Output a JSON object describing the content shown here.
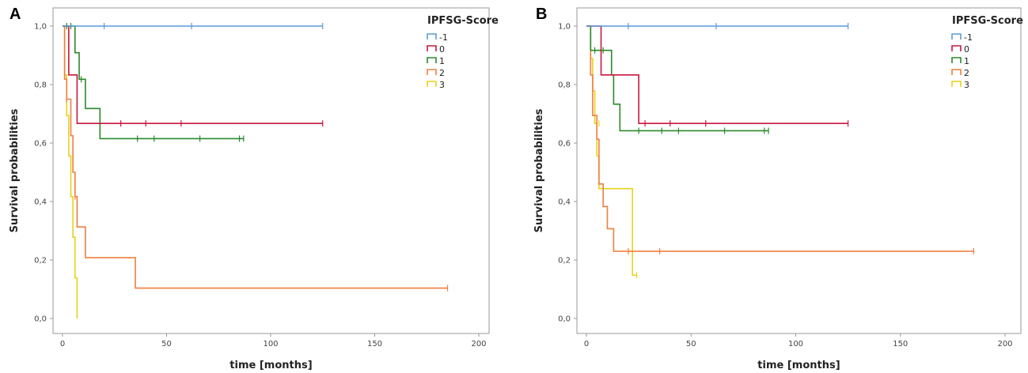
{
  "panels": [
    {
      "letter": "A",
      "legend_title": "IPFSG-Score",
      "chart_data": {
        "type": "line",
        "xlabel": "time [months]",
        "ylabel": "Survival probabilities",
        "xlim": [
          0,
          200
        ],
        "ylim": [
          0,
          1
        ],
        "x_ticks": [
          0,
          50,
          100,
          150,
          200
        ],
        "y_ticks": [
          "0,0",
          "0,2",
          "0,4",
          "0,6",
          "0,8",
          "1,0"
        ],
        "series": [
          {
            "name": "-1",
            "color": "#5b9bd5",
            "steps": [
              [
                0,
                1.0
              ],
              [
                125,
                1.0
              ]
            ],
            "censor": [
              [
                20,
                1.0
              ],
              [
                62,
                1.0
              ],
              [
                125,
                1.0
              ]
            ]
          },
          {
            "name": "0",
            "color": "#c8173f",
            "steps": [
              [
                0,
                1.0
              ],
              [
                3,
                0.833
              ],
              [
                7,
                0.667
              ],
              [
                125,
                0.667
              ]
            ],
            "censor": [
              [
                28,
                0.667
              ],
              [
                40,
                0.667
              ],
              [
                57,
                0.667
              ],
              [
                125,
                0.667
              ]
            ]
          },
          {
            "name": "1",
            "color": "#2a8a2a",
            "steps": [
              [
                0,
                1.0
              ],
              [
                6,
                0.909
              ],
              [
                8,
                0.818
              ],
              [
                11,
                0.718
              ],
              [
                18,
                0.615
              ],
              [
                87,
                0.615
              ]
            ],
            "censor": [
              [
                2,
                1.0
              ],
              [
                4,
                1.0
              ],
              [
                9,
                0.818
              ],
              [
                36,
                0.615
              ],
              [
                44,
                0.615
              ],
              [
                66,
                0.615
              ],
              [
                85,
                0.615
              ],
              [
                87,
                0.615
              ]
            ]
          },
          {
            "name": "2",
            "color": "#f07e3e",
            "steps": [
              [
                0,
                1.0
              ],
              [
                1,
                0.818
              ],
              [
                2,
                0.75
              ],
              [
                4,
                0.625
              ],
              [
                5,
                0.5
              ],
              [
                6,
                0.417
              ],
              [
                7,
                0.313
              ],
              [
                11,
                0.208
              ],
              [
                35,
                0.104
              ],
              [
                185,
                0.104
              ]
            ],
            "censor": [
              [
                2,
                0.75
              ],
              [
                6,
                0.417
              ],
              [
                185,
                0.104
              ]
            ]
          },
          {
            "name": "3",
            "color": "#e8d21c",
            "steps": [
              [
                0,
                1.0
              ],
              [
                1,
                0.833
              ],
              [
                2,
                0.694
              ],
              [
                3,
                0.556
              ],
              [
                4,
                0.417
              ],
              [
                5,
                0.278
              ],
              [
                6,
                0.139
              ],
              [
                7,
                0.0
              ]
            ],
            "censor": []
          }
        ]
      }
    },
    {
      "letter": "B",
      "legend_title": "IPFSG-Score",
      "chart_data": {
        "type": "line",
        "xlabel": "time [months]",
        "ylabel": "Survival probabilities",
        "xlim": [
          0,
          200
        ],
        "ylim": [
          0,
          1
        ],
        "x_ticks": [
          0,
          50,
          100,
          150,
          200
        ],
        "y_ticks": [
          "0,0",
          "0,2",
          "0,4",
          "0,6",
          "0,8",
          "1,0"
        ],
        "series": [
          {
            "name": "-1",
            "color": "#5b9bd5",
            "steps": [
              [
                0,
                1.0
              ],
              [
                125,
                1.0
              ]
            ],
            "censor": [
              [
                20,
                1.0
              ],
              [
                62,
                1.0
              ],
              [
                125,
                1.0
              ]
            ]
          },
          {
            "name": "0",
            "color": "#c8173f",
            "steps": [
              [
                0,
                1.0
              ],
              [
                7,
                0.833
              ],
              [
                25,
                0.667
              ],
              [
                125,
                0.667
              ]
            ],
            "censor": [
              [
                28,
                0.667
              ],
              [
                40,
                0.667
              ],
              [
                57,
                0.667
              ],
              [
                125,
                0.667
              ]
            ]
          },
          {
            "name": "1",
            "color": "#2a8a2a",
            "steps": [
              [
                0,
                1.0
              ],
              [
                2,
                0.917
              ],
              [
                12,
                0.833
              ],
              [
                13,
                0.733
              ],
              [
                16,
                0.642
              ],
              [
                87,
                0.642
              ]
            ],
            "censor": [
              [
                4,
                0.917
              ],
              [
                8,
                0.917
              ],
              [
                25,
                0.642
              ],
              [
                36,
                0.642
              ],
              [
                44,
                0.642
              ],
              [
                66,
                0.642
              ],
              [
                85,
                0.642
              ],
              [
                87,
                0.642
              ]
            ]
          },
          {
            "name": "2",
            "color": "#f07e3e",
            "steps": [
              [
                0,
                1.0
              ],
              [
                2,
                0.833
              ],
              [
                3,
                0.694
              ],
              [
                5,
                0.613
              ],
              [
                6,
                0.46
              ],
              [
                8,
                0.383
              ],
              [
                10,
                0.307
              ],
              [
                13,
                0.23
              ],
              [
                185,
                0.23
              ]
            ],
            "censor": [
              [
                20,
                0.23
              ],
              [
                35,
                0.23
              ],
              [
                185,
                0.23
              ]
            ]
          },
          {
            "name": "3",
            "color": "#e8d21c",
            "steps": [
              [
                0,
                1.0
              ],
              [
                2,
                0.889
              ],
              [
                3,
                0.778
              ],
              [
                4,
                0.667
              ],
              [
                5,
                0.556
              ],
              [
                6,
                0.444
              ],
              [
                22,
                0.148
              ],
              [
                24,
                0.148
              ]
            ],
            "censor": [
              [
                6,
                0.667
              ],
              [
                24,
                0.148
              ]
            ]
          }
        ]
      }
    }
  ]
}
